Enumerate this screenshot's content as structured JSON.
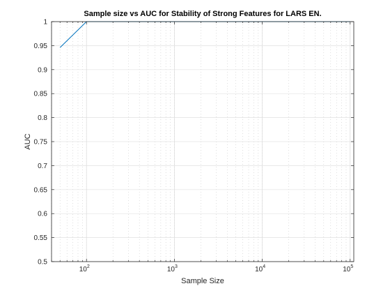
{
  "chart_data": {
    "type": "line",
    "title": "Sample size vs AUC for Stability of Strong Features for LARS EN.",
    "xlabel": "Sample Size",
    "ylabel": "AUC",
    "xscale": "log",
    "xlim": [
      40,
      110000
    ],
    "ylim": [
      0.5,
      1.0
    ],
    "x_major_ticks": [
      {
        "value": 100,
        "base": "10",
        "exp": "2"
      },
      {
        "value": 1000,
        "base": "10",
        "exp": "3"
      },
      {
        "value": 10000,
        "base": "10",
        "exp": "4"
      },
      {
        "value": 100000,
        "base": "10",
        "exp": "5"
      }
    ],
    "y_ticks": [
      0.5,
      0.55,
      0.6,
      0.65,
      0.7,
      0.75,
      0.8,
      0.85,
      0.9,
      0.95,
      1
    ],
    "y_tick_labels": [
      "0.5",
      "0.55",
      "0.6",
      "0.65",
      "0.7",
      "0.75",
      "0.8",
      "0.85",
      "0.9",
      "0.95",
      "1"
    ],
    "grid": true,
    "minor_grid_x": true,
    "series": [
      {
        "color": "#0072bd",
        "x": [
          50,
          100,
          200,
          500,
          1000,
          2000,
          5000,
          10000,
          20000,
          50000,
          100000
        ],
        "y": [
          0.946,
          1.0,
          1.0,
          1.0,
          1.0,
          1.0,
          1.0,
          1.0,
          1.0,
          1.0,
          1.0
        ]
      }
    ]
  }
}
